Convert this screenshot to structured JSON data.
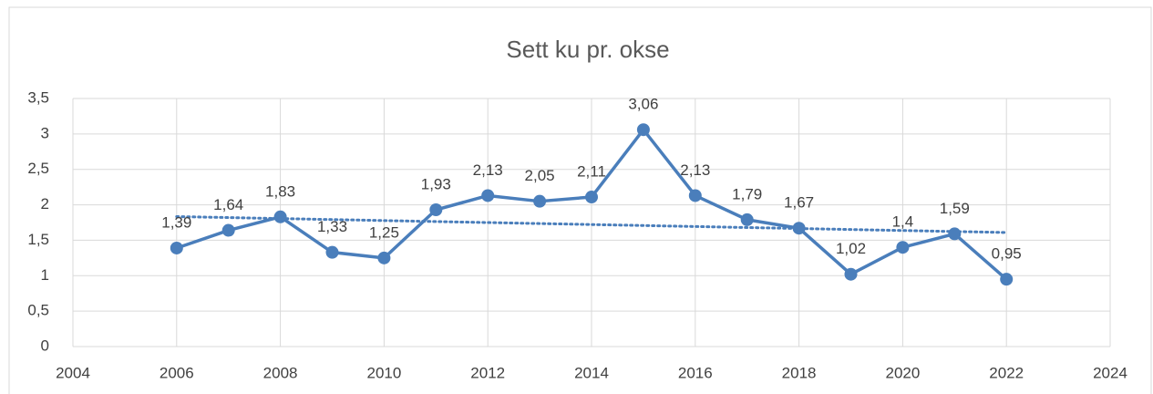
{
  "chart_data": {
    "type": "line",
    "title": "Sett ku pr. okse",
    "x": [
      2006,
      2007,
      2008,
      2009,
      2010,
      2011,
      2012,
      2013,
      2014,
      2015,
      2016,
      2017,
      2018,
      2019,
      2020,
      2021,
      2022
    ],
    "values": [
      1.39,
      1.64,
      1.83,
      1.33,
      1.25,
      1.93,
      2.13,
      2.05,
      2.11,
      3.06,
      2.13,
      1.79,
      1.67,
      1.02,
      1.4,
      1.59,
      0.95
    ],
    "value_labels": [
      "1,39",
      "1,64",
      "1,83",
      "1,33",
      "1,25",
      "1,93",
      "2,13",
      "2,05",
      "2,11",
      "3,06",
      "2,13",
      "1,79",
      "1,67",
      "1,02",
      "1,4",
      "1,59",
      "0,95"
    ],
    "color": "#4a7ebb",
    "trendline": "linear",
    "xlim": [
      2004,
      2024
    ],
    "xticks": [
      2004,
      2006,
      2008,
      2010,
      2012,
      2014,
      2016,
      2018,
      2020,
      2022,
      2024
    ],
    "ylim": [
      0,
      3.5
    ],
    "yticks": [
      0,
      {
        "value": 0.5,
        "label": "0,5"
      },
      1,
      {
        "value": 1.5,
        "label": "1,5"
      },
      2,
      {
        "value": 2.5,
        "label": "2,5"
      },
      3,
      {
        "value": 3.5,
        "label": "3,5"
      }
    ],
    "grid": true
  }
}
